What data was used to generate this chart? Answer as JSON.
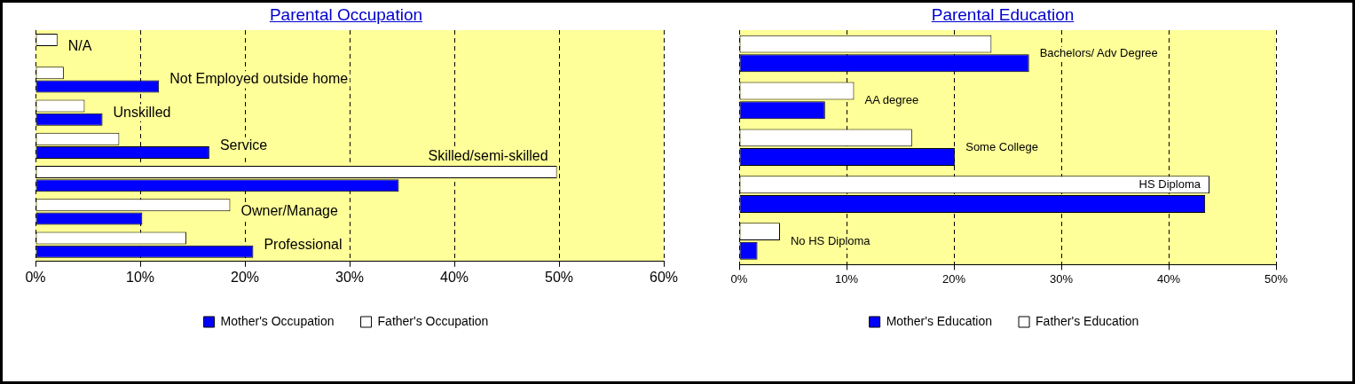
{
  "chart_data": [
    {
      "type": "bar",
      "title": "Parental Occupation",
      "orientation": "horizontal",
      "categories": [
        "N/A",
        "Not Employed outside home",
        "Unskilled",
        "Service",
        "Skilled/semi-skilled",
        "Owner/Manage",
        "Professional"
      ],
      "series": [
        {
          "name": "Father's Occupation",
          "color": "#ffffff",
          "values": [
            2.1,
            2.7,
            4.7,
            8.0,
            49.8,
            18.6,
            14.4
          ]
        },
        {
          "name": "Mother's Occupation",
          "color": "#0000ff",
          "values": [
            0,
            11.8,
            6.4,
            16.6,
            34.7,
            10.2,
            20.8
          ]
        }
      ],
      "xlim": [
        0,
        60
      ],
      "xticks": [
        {
          "value": 0,
          "label": "0%"
        },
        {
          "value": 10,
          "label": "10%"
        },
        {
          "value": 20,
          "label": "20%"
        },
        {
          "value": 30,
          "label": "30%"
        },
        {
          "value": 40,
          "label": "40%"
        },
        {
          "value": 50,
          "label": "50%"
        },
        {
          "value": 60,
          "label": "60%"
        }
      ],
      "grid": "x",
      "legend": "bottom",
      "tick_labels": "x"
    },
    {
      "type": "bar",
      "title": "Parental Education",
      "orientation": "horizontal",
      "categories": [
        "Bachelors/ Adv Degree",
        "AA degree",
        "Some College",
        "HS Diploma",
        "No HS Diploma"
      ],
      "series": [
        {
          "name": "Father's Education",
          "color": "#ffffff",
          "values": [
            23.5,
            10.7,
            16.1,
            43.8,
            3.8
          ]
        },
        {
          "name": "Mother's Education",
          "color": "#0000ff",
          "values": [
            27.0,
            8.0,
            20.1,
            43.4,
            1.7
          ]
        }
      ],
      "xlim": [
        0,
        50
      ],
      "xticks": [
        {
          "value": 0,
          "label": "0%"
        },
        {
          "value": 10,
          "label": "10%"
        },
        {
          "value": 20,
          "label": "20%"
        },
        {
          "value": 30,
          "label": "30%"
        },
        {
          "value": 40,
          "label": "40%"
        },
        {
          "value": 50,
          "label": "50%"
        }
      ],
      "grid": "x",
      "legend": "bottom",
      "tick_labels": "x"
    }
  ]
}
